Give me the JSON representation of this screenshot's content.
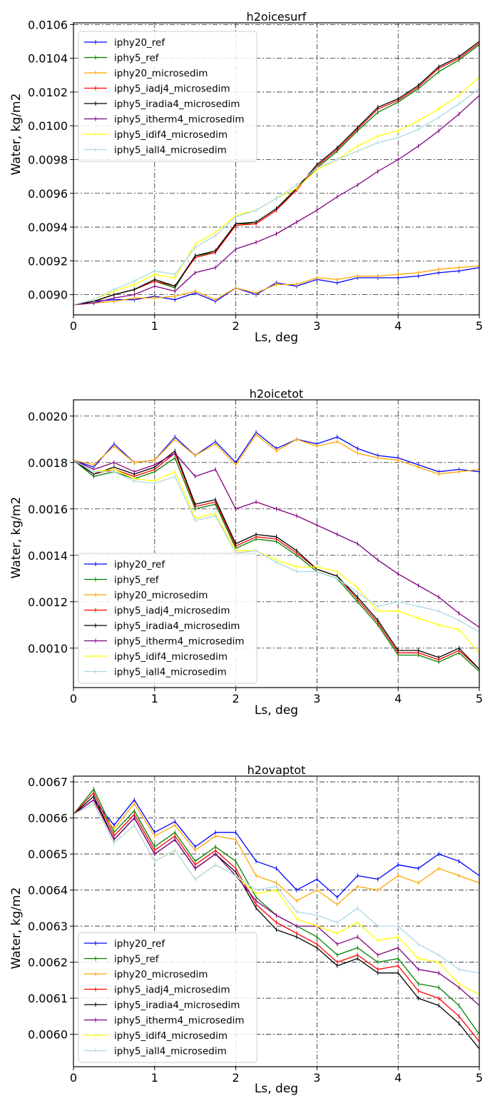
{
  "colors": {
    "iphy20_ref": "#0000ff",
    "iphy5_ref": "#008000",
    "iphy20_microsedim": "#ffa500",
    "iphy5_iadj4_microsedim": "#ff0000",
    "iphy5_iradia4_microsedim": "#000000",
    "iphy5_itherm4_microsedim": "#800080",
    "iphy5_idif4_microsedim": "#ffff00",
    "iphy5_iall4_microsedim": "#add8e6",
    "grid": "#000000"
  },
  "chart_data": [
    {
      "type": "line",
      "title": "h2oicesurf",
      "xlabel": "Ls, deg",
      "ylabel": "Water, kg/m2",
      "xlim": [
        0,
        5
      ],
      "ylim": [
        0.00888,
        0.01061
      ],
      "x_ticks": [
        "0",
        "1",
        "2",
        "3",
        "4",
        "5"
      ],
      "y_ticks": [
        "0.0090",
        "0.0092",
        "0.0094",
        "0.0096",
        "0.0098",
        "0.0100",
        "0.0102",
        "0.0104",
        "0.0106"
      ],
      "grid": true,
      "legend_position": "upper-left",
      "x": [
        0,
        0.25,
        0.5,
        0.75,
        1,
        1.25,
        1.5,
        1.75,
        2,
        2.25,
        2.5,
        2.75,
        3,
        3.25,
        3.5,
        3.75,
        4,
        4.25,
        4.5,
        4.75,
        5
      ],
      "series": [
        {
          "name": "iphy20_ref",
          "color_key": "iphy20_ref",
          "values": [
            0.00894,
            0.00896,
            0.00897,
            0.00897,
            0.00899,
            0.00897,
            0.00901,
            0.00896,
            0.00904,
            0.009,
            0.00907,
            0.00905,
            0.00909,
            0.00907,
            0.0091,
            0.0091,
            0.0091,
            0.00911,
            0.00913,
            0.00914,
            0.00916
          ]
        },
        {
          "name": "iphy5_ref",
          "color_key": "iphy5_ref",
          "values": [
            0.00894,
            0.00896,
            0.009,
            0.00903,
            0.00908,
            0.00904,
            0.00923,
            0.00925,
            0.00942,
            0.00942,
            0.0095,
            0.00963,
            0.00975,
            0.00985,
            0.00997,
            0.01008,
            0.01014,
            0.01022,
            0.01032,
            0.01039,
            0.01048
          ]
        },
        {
          "name": "iphy20_microsedim",
          "color_key": "iphy20_microsedim",
          "values": [
            0.00894,
            0.00895,
            0.00896,
            0.00898,
            0.00898,
            0.00899,
            0.00902,
            0.00897,
            0.00904,
            0.00901,
            0.00906,
            0.00906,
            0.0091,
            0.00909,
            0.00911,
            0.00911,
            0.00912,
            0.00913,
            0.00915,
            0.00916,
            0.00917
          ]
        },
        {
          "name": "iphy5_iadj4_microsedim",
          "color_key": "iphy5_iadj4_microsedim",
          "values": [
            0.00894,
            0.00896,
            0.009,
            0.00903,
            0.00908,
            0.00905,
            0.00922,
            0.00925,
            0.00941,
            0.00942,
            0.0095,
            0.00962,
            0.00976,
            0.00986,
            0.00998,
            0.0101,
            0.01015,
            0.01023,
            0.01034,
            0.0104,
            0.01049
          ]
        },
        {
          "name": "iphy5_iradia4_microsedim",
          "color_key": "iphy5_iradia4_microsedim",
          "values": [
            0.00894,
            0.00896,
            0.009,
            0.00903,
            0.00909,
            0.00905,
            0.00923,
            0.00926,
            0.00942,
            0.00943,
            0.00951,
            0.00963,
            0.00977,
            0.00987,
            0.00999,
            0.01011,
            0.01016,
            0.01024,
            0.01035,
            0.01041,
            0.0105
          ]
        },
        {
          "name": "iphy5_itherm4_microsedim",
          "color_key": "iphy5_itherm4_microsedim",
          "values": [
            0.00894,
            0.00895,
            0.00898,
            0.009,
            0.00905,
            0.00902,
            0.00913,
            0.00916,
            0.00927,
            0.00931,
            0.00936,
            0.00943,
            0.0095,
            0.00958,
            0.00965,
            0.00973,
            0.0098,
            0.00988,
            0.00997,
            0.01007,
            0.01018
          ]
        },
        {
          "name": "iphy5_idif4_microsedim",
          "color_key": "iphy5_idif4_microsedim",
          "values": [
            0.00894,
            0.00897,
            0.00902,
            0.00906,
            0.00912,
            0.0091,
            0.0093,
            0.00937,
            0.00947,
            0.0095,
            0.00957,
            0.00963,
            0.00974,
            0.0098,
            0.00988,
            0.00994,
            0.00997,
            0.01003,
            0.0101,
            0.01018,
            0.01029
          ]
        },
        {
          "name": "iphy5_iall4_microsedim",
          "color_key": "iphy5_iall4_microsedim",
          "values": [
            0.00894,
            0.00897,
            0.00903,
            0.00908,
            0.00914,
            0.00912,
            0.00928,
            0.00935,
            0.00946,
            0.0095,
            0.00957,
            0.00965,
            0.00975,
            0.0098,
            0.00985,
            0.0099,
            0.00993,
            0.00998,
            0.01005,
            0.01013,
            0.01022
          ]
        }
      ]
    },
    {
      "type": "line",
      "title": "h2oicetot",
      "xlabel": "Ls, deg",
      "ylabel": "Water, kg/m2",
      "xlim": [
        0,
        5
      ],
      "ylim": [
        0.00083,
        0.00207
      ],
      "x_ticks": [
        "0",
        "1",
        "2",
        "3",
        "4",
        "5"
      ],
      "y_ticks": [
        "0.0010",
        "0.0012",
        "0.0014",
        "0.0016",
        "0.0018",
        "0.0020"
      ],
      "grid": true,
      "legend_position": "lower-left",
      "x": [
        0,
        0.25,
        0.5,
        0.75,
        1,
        1.25,
        1.5,
        1.75,
        2,
        2.25,
        2.5,
        2.75,
        3,
        3.25,
        3.5,
        3.75,
        4,
        4.25,
        4.5,
        4.75,
        5
      ],
      "series": [
        {
          "name": "iphy20_ref",
          "color_key": "iphy20_ref",
          "values": [
            0.00181,
            0.00178,
            0.00188,
            0.0018,
            0.00181,
            0.00191,
            0.00183,
            0.00189,
            0.0018,
            0.00193,
            0.00186,
            0.0019,
            0.00188,
            0.00191,
            0.00186,
            0.00183,
            0.00182,
            0.00179,
            0.00176,
            0.00177,
            0.00176
          ]
        },
        {
          "name": "iphy5_ref",
          "color_key": "iphy5_ref",
          "values": [
            0.00181,
            0.00174,
            0.00176,
            0.00173,
            0.00176,
            0.00182,
            0.0016,
            0.00162,
            0.00143,
            0.00147,
            0.00146,
            0.0014,
            0.00133,
            0.0013,
            0.0012,
            0.0011,
            0.00097,
            0.00097,
            0.00094,
            0.00098,
            0.0009
          ]
        },
        {
          "name": "iphy20_microsedim",
          "color_key": "iphy20_microsedim",
          "values": [
            0.00181,
            0.00179,
            0.00187,
            0.0018,
            0.00181,
            0.0019,
            0.00183,
            0.00188,
            0.00179,
            0.00192,
            0.00185,
            0.0019,
            0.00187,
            0.00189,
            0.00184,
            0.00182,
            0.00181,
            0.00178,
            0.00175,
            0.00176,
            0.00177
          ]
        },
        {
          "name": "iphy5_iadj4_microsedim",
          "color_key": "iphy5_iadj4_microsedim",
          "values": [
            0.00181,
            0.00175,
            0.00177,
            0.00174,
            0.00177,
            0.00184,
            0.00161,
            0.00163,
            0.00144,
            0.00148,
            0.00147,
            0.00141,
            0.00134,
            0.00131,
            0.00121,
            0.00111,
            0.00098,
            0.00098,
            0.00095,
            0.00099,
            0.00091
          ]
        },
        {
          "name": "iphy5_iradia4_microsedim",
          "color_key": "iphy5_iradia4_microsedim",
          "values": [
            0.00181,
            0.00175,
            0.00178,
            0.00175,
            0.00178,
            0.00185,
            0.00162,
            0.00164,
            0.00145,
            0.00149,
            0.00148,
            0.00142,
            0.00134,
            0.00131,
            0.00122,
            0.00112,
            0.00099,
            0.00099,
            0.00096,
            0.001,
            0.00091
          ]
        },
        {
          "name": "iphy5_itherm4_microsedim",
          "color_key": "iphy5_itherm4_microsedim",
          "values": [
            0.00181,
            0.00177,
            0.0018,
            0.00176,
            0.00179,
            0.00184,
            0.00174,
            0.00177,
            0.0016,
            0.00163,
            0.0016,
            0.00157,
            0.00153,
            0.00149,
            0.00145,
            0.00138,
            0.00132,
            0.00127,
            0.00122,
            0.00115,
            0.00109
          ]
        },
        {
          "name": "iphy5_idif4_microsedim",
          "color_key": "iphy5_idif4_microsedim",
          "values": [
            0.00181,
            0.00176,
            0.00177,
            0.00173,
            0.00172,
            0.00176,
            0.00156,
            0.00158,
            0.00142,
            0.00142,
            0.00138,
            0.00135,
            0.00135,
            0.00133,
            0.00126,
            0.00116,
            0.00116,
            0.00113,
            0.0011,
            0.00108,
            0.00098
          ]
        },
        {
          "name": "iphy5_iall4_microsedim",
          "color_key": "iphy5_iall4_microsedim",
          "values": [
            0.00181,
            0.00176,
            0.00176,
            0.00172,
            0.00171,
            0.00174,
            0.00155,
            0.00157,
            0.00141,
            0.00142,
            0.00137,
            0.00133,
            0.00133,
            0.0013,
            0.00124,
            0.00118,
            0.0012,
            0.00118,
            0.00116,
            0.00112,
            0.00107
          ]
        }
      ]
    },
    {
      "type": "line",
      "title": "h2ovaptot",
      "xlabel": "Ls, deg",
      "ylabel": "Water, kg/m2",
      "xlim": [
        0,
        5
      ],
      "ylim": [
        0.00591,
        0.006716
      ],
      "x_ticks": [
        "0",
        "1",
        "2",
        "3",
        "4",
        "5"
      ],
      "y_ticks": [
        "0.0060",
        "0.0061",
        "0.0062",
        "0.0063",
        "0.0064",
        "0.0065",
        "0.0066",
        "0.0067"
      ],
      "grid": true,
      "legend_position": "lower-left",
      "x": [
        0,
        0.25,
        0.5,
        0.75,
        1,
        1.25,
        1.5,
        1.75,
        2,
        2.25,
        2.5,
        2.75,
        3,
        3.25,
        3.5,
        3.75,
        4,
        4.25,
        4.5,
        4.75,
        5
      ],
      "series": [
        {
          "name": "iphy20_ref",
          "color_key": "iphy20_ref",
          "values": [
            0.00661,
            0.00665,
            0.00658,
            0.00665,
            0.00656,
            0.00659,
            0.00652,
            0.00656,
            0.00656,
            0.00648,
            0.00646,
            0.0064,
            0.00643,
            0.00638,
            0.00644,
            0.00643,
            0.00647,
            0.00646,
            0.0065,
            0.00648,
            0.00644
          ]
        },
        {
          "name": "iphy5_ref",
          "color_key": "iphy5_ref",
          "values": [
            0.00661,
            0.00668,
            0.00656,
            0.00662,
            0.00652,
            0.00656,
            0.00648,
            0.00652,
            0.00648,
            0.00638,
            0.00633,
            0.0063,
            0.00627,
            0.00622,
            0.00624,
            0.0062,
            0.00621,
            0.00614,
            0.00613,
            0.00608,
            0.006
          ]
        },
        {
          "name": "iphy20_microsedim",
          "color_key": "iphy20_microsedim",
          "values": [
            0.00661,
            0.00664,
            0.00657,
            0.00664,
            0.00655,
            0.00658,
            0.00651,
            0.00655,
            0.00654,
            0.00644,
            0.00642,
            0.00637,
            0.0064,
            0.00636,
            0.00641,
            0.0064,
            0.00644,
            0.00642,
            0.00646,
            0.00644,
            0.00642
          ]
        },
        {
          "name": "iphy5_iadj4_microsedim",
          "color_key": "iphy5_iadj4_microsedim",
          "values": [
            0.00661,
            0.00667,
            0.00655,
            0.00661,
            0.00651,
            0.00655,
            0.00647,
            0.00651,
            0.00646,
            0.00636,
            0.00631,
            0.00628,
            0.00625,
            0.0062,
            0.00622,
            0.00618,
            0.00619,
            0.00612,
            0.0061,
            0.00605,
            0.00598
          ]
        },
        {
          "name": "iphy5_iradia4_microsedim",
          "color_key": "iphy5_iradia4_microsedim",
          "values": [
            0.00661,
            0.00666,
            0.00654,
            0.0066,
            0.0065,
            0.00654,
            0.00646,
            0.0065,
            0.00645,
            0.00635,
            0.00629,
            0.00627,
            0.00624,
            0.00619,
            0.00621,
            0.00617,
            0.00617,
            0.0061,
            0.00608,
            0.00603,
            0.00596
          ]
        },
        {
          "name": "iphy5_itherm4_microsedim",
          "color_key": "iphy5_itherm4_microsedim",
          "values": [
            0.00661,
            0.00665,
            0.00654,
            0.0066,
            0.0065,
            0.00654,
            0.00646,
            0.0065,
            0.00644,
            0.00637,
            0.00633,
            0.0063,
            0.0063,
            0.00625,
            0.00627,
            0.00622,
            0.00624,
            0.00618,
            0.00617,
            0.00613,
            0.00608
          ]
        },
        {
          "name": "iphy5_idif4_microsedim",
          "color_key": "iphy5_idif4_microsedim",
          "values": [
            0.00661,
            0.00664,
            0.00653,
            0.00658,
            0.00648,
            0.00651,
            0.00643,
            0.00647,
            0.00644,
            0.00639,
            0.0064,
            0.00632,
            0.0063,
            0.00628,
            0.00631,
            0.00626,
            0.00627,
            0.00621,
            0.0062,
            0.00614,
            0.00611
          ]
        },
        {
          "name": "iphy5_iall4_microsedim",
          "color_key": "iphy5_iall4_microsedim",
          "values": [
            0.00661,
            0.00664,
            0.00653,
            0.00658,
            0.00648,
            0.00651,
            0.00643,
            0.00647,
            0.00644,
            0.0064,
            0.00641,
            0.00634,
            0.00633,
            0.00631,
            0.00635,
            0.0063,
            0.0063,
            0.00625,
            0.00622,
            0.00618,
            0.00617
          ]
        }
      ]
    }
  ]
}
